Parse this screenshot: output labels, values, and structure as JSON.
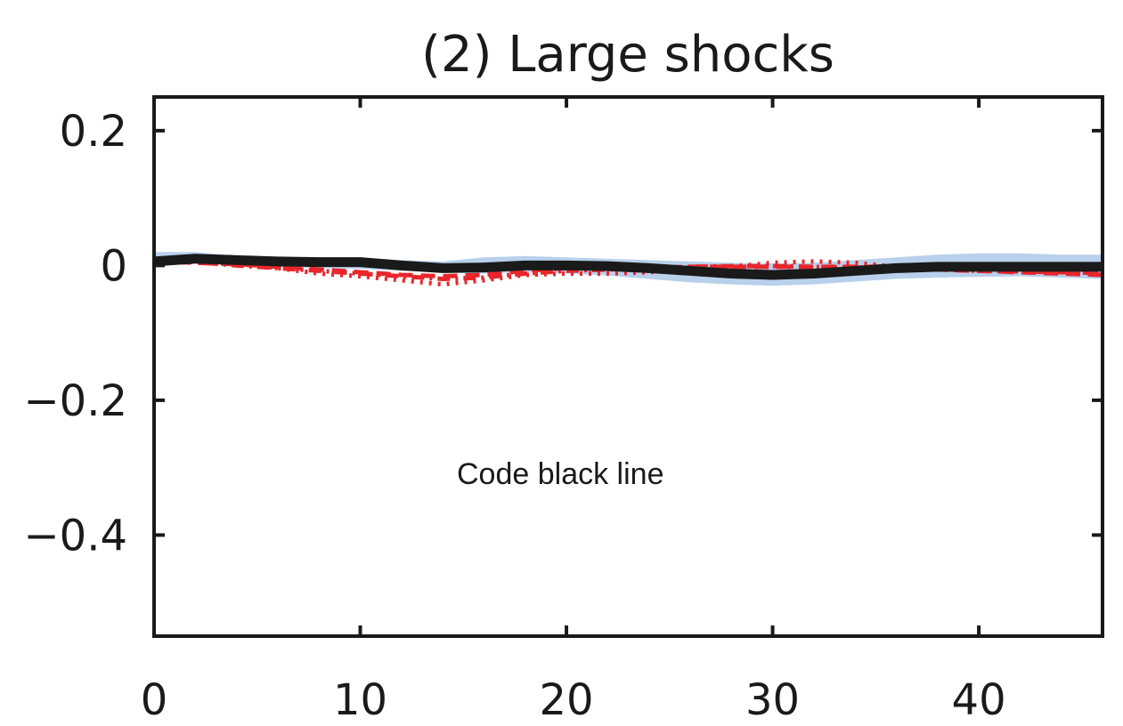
{
  "chart_data": {
    "type": "line",
    "title": "(2) Large shocks",
    "xlabel": "",
    "ylabel": "",
    "xlim": [
      0,
      46
    ],
    "ylim": [
      -0.55,
      0.25
    ],
    "xticks": [
      0,
      10,
      20,
      30,
      40
    ],
    "yticks": [
      0.2,
      0,
      -0.2,
      -0.4
    ],
    "xtick_labels": [
      "0",
      "10",
      "20",
      "30",
      "40"
    ],
    "ytick_labels": [
      "0.2",
      "0",
      "−0.2",
      "−0.4"
    ],
    "grid": false,
    "annotation": "Code black line",
    "colors": {
      "black_line": "#1a1a1a",
      "red_lines": "#e8262b",
      "band": "#b8d0ec",
      "axes": "#1a1a1a"
    },
    "band": {
      "x": [
        0,
        2,
        4,
        6,
        8,
        10,
        12,
        14,
        16,
        18,
        20,
        22,
        24,
        26,
        28,
        30,
        32,
        34,
        36,
        38,
        40,
        42,
        44,
        46
      ],
      "lower": [
        0.0,
        0.005,
        0.0,
        -0.002,
        -0.004,
        -0.005,
        -0.008,
        -0.01,
        -0.012,
        -0.01,
        -0.012,
        -0.015,
        -0.02,
        -0.025,
        -0.028,
        -0.03,
        -0.028,
        -0.024,
        -0.02,
        -0.018,
        -0.017,
        -0.016,
        -0.018,
        -0.02
      ],
      "upper": [
        0.02,
        0.02,
        0.014,
        0.012,
        0.012,
        0.012,
        0.008,
        0.006,
        0.012,
        0.014,
        0.012,
        0.01,
        0.008,
        0.006,
        0.004,
        0.003,
        0.004,
        0.008,
        0.012,
        0.016,
        0.018,
        0.018,
        0.016,
        0.016
      ]
    },
    "series": [
      {
        "style": "solid",
        "x": [
          0,
          2,
          4,
          6,
          8,
          10,
          12,
          14,
          16,
          18,
          20,
          22,
          24,
          26,
          28,
          30,
          32,
          34,
          36,
          38,
          40,
          42,
          44,
          46
        ],
        "values": [
          0.006,
          0.01,
          0.008,
          0.006,
          0.005,
          0.005,
          0.0,
          -0.004,
          -0.003,
          0.0,
          0.0,
          -0.001,
          -0.004,
          -0.008,
          -0.012,
          -0.014,
          -0.012,
          -0.008,
          -0.004,
          -0.002,
          -0.002,
          -0.002,
          -0.002,
          -0.002
        ]
      },
      {
        "style": "dashdot",
        "x": [
          0,
          2,
          4,
          6,
          8,
          10,
          12,
          14,
          16,
          18,
          20,
          22,
          24,
          26,
          28,
          30,
          32,
          34,
          36,
          38,
          40,
          42,
          44,
          46
        ],
        "values": [
          0.006,
          0.005,
          0.0,
          -0.004,
          -0.008,
          -0.012,
          -0.016,
          -0.02,
          -0.018,
          -0.012,
          -0.008,
          -0.006,
          -0.004,
          -0.002,
          -0.001,
          -0.001,
          -0.002,
          -0.003,
          -0.004,
          -0.006,
          -0.008,
          -0.009,
          -0.01,
          -0.011
        ]
      },
      {
        "style": "dotted",
        "x": [
          0,
          2,
          4,
          6,
          8,
          10,
          12,
          14,
          16,
          18,
          20,
          22,
          24,
          26,
          28,
          30,
          32,
          34,
          36,
          38,
          40,
          42,
          44,
          46
        ],
        "values": [
          0.008,
          0.006,
          0.004,
          -0.004,
          -0.012,
          -0.016,
          -0.022,
          -0.028,
          -0.022,
          -0.014,
          -0.012,
          -0.012,
          -0.01,
          -0.006,
          -0.002,
          0.004,
          0.006,
          0.004,
          -0.002,
          -0.004,
          -0.006,
          -0.008,
          -0.01,
          -0.012
        ]
      },
      {
        "style": "dashed",
        "x": [
          0,
          2,
          4,
          6,
          8,
          10,
          12,
          14,
          16,
          18,
          20,
          22,
          24,
          26,
          28,
          30,
          32,
          34,
          36,
          38,
          40,
          42,
          44,
          46
        ],
        "values": [
          0.006,
          0.004,
          0.002,
          -0.002,
          -0.006,
          -0.01,
          -0.014,
          -0.016,
          -0.014,
          -0.008,
          -0.004,
          -0.004,
          -0.004,
          -0.002,
          -0.002,
          -0.002,
          -0.002,
          -0.002,
          -0.002,
          -0.006,
          -0.008,
          -0.01,
          -0.012,
          -0.014
        ]
      }
    ]
  }
}
